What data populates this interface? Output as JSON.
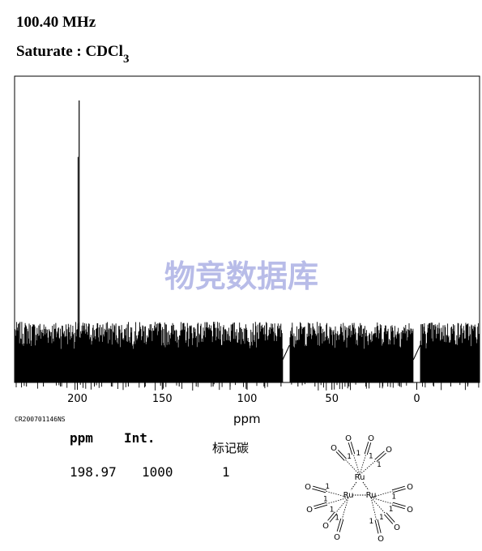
{
  "header": {
    "frequency": "100.40 MHz",
    "solvent_prefix": "Saturate : CDCl",
    "solvent_subscript": "3"
  },
  "watermark": "物竞数据库",
  "sample_id": "CR200701146NS",
  "peak_table": {
    "headers": {
      "ppm": "ppm",
      "int": "Int.",
      "label": "标记碳"
    },
    "rows": [
      {
        "ppm": "198.97",
        "int": "1000",
        "label": "1"
      }
    ]
  },
  "structure": {
    "metal_label": "Ru",
    "carbonyl_label": "O",
    "bond_order_label": "1"
  },
  "chart_data": {
    "type": "line",
    "title": "",
    "xlabel": "ppm",
    "ylabel": "",
    "x_reversed": true,
    "xlim": [
      237,
      -37
    ],
    "x_ticks": [
      200,
      150,
      100,
      50,
      0
    ],
    "x_tick_labels": [
      "200",
      "150",
      "100",
      "50",
      "0"
    ],
    "ylim": [
      0,
      1000
    ],
    "noise_baseline_range": [
      0,
      215
    ],
    "peaks": [
      {
        "ppm": 198.97,
        "intensity": 1000
      }
    ],
    "solvent_gaps_ppm": [
      [
        79,
        75
      ],
      [
        2,
        -2
      ]
    ],
    "grid": false
  }
}
